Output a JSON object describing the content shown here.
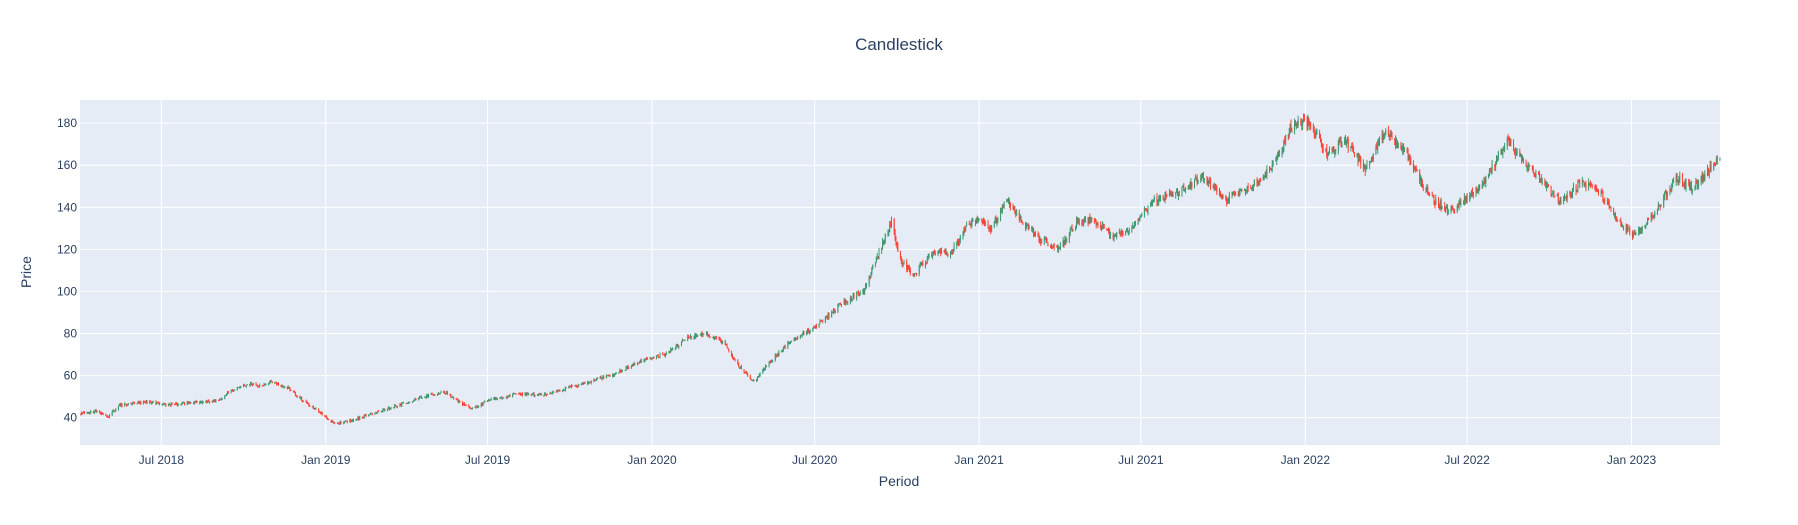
{
  "chart_data": {
    "type": "candlestick",
    "title": "Candlestick",
    "xlabel": "Period",
    "ylabel": "Price",
    "xlim": [
      "2018-04-01",
      "2023-04-10"
    ],
    "ylim": [
      27,
      191
    ],
    "y_ticks": [
      40,
      60,
      80,
      100,
      120,
      140,
      160,
      180
    ],
    "x_ticks": [
      {
        "date": "2018-07-01",
        "label": "Jul 2018"
      },
      {
        "date": "2019-01-01",
        "label": "Jan 2019"
      },
      {
        "date": "2019-07-01",
        "label": "Jul 2019"
      },
      {
        "date": "2020-01-01",
        "label": "Jan 2020"
      },
      {
        "date": "2020-07-01",
        "label": "Jul 2020"
      },
      {
        "date": "2021-01-01",
        "label": "Jan 2021"
      },
      {
        "date": "2021-07-01",
        "label": "Jul 2021"
      },
      {
        "date": "2022-01-01",
        "label": "Jan 2022"
      },
      {
        "date": "2022-07-01",
        "label": "Jul 2022"
      },
      {
        "date": "2023-01-01",
        "label": "Jan 2023"
      }
    ],
    "grid": true,
    "increasing_color": "#3d9970",
    "decreasing_color": "#ff4136",
    "close_trend": [
      [
        "2018-04-01",
        42
      ],
      [
        "2018-04-20",
        43
      ],
      [
        "2018-05-03",
        40.5
      ],
      [
        "2018-05-15",
        46
      ],
      [
        "2018-06-15",
        47.5
      ],
      [
        "2018-07-10",
        46
      ],
      [
        "2018-08-01",
        47
      ],
      [
        "2018-09-01",
        48
      ],
      [
        "2018-09-15",
        52
      ],
      [
        "2018-10-05",
        56
      ],
      [
        "2018-10-20",
        55
      ],
      [
        "2018-11-01",
        57
      ],
      [
        "2018-11-20",
        54
      ],
      [
        "2018-12-10",
        47
      ],
      [
        "2018-12-31",
        41
      ],
      [
        "2019-01-10",
        37
      ],
      [
        "2019-02-01",
        39
      ],
      [
        "2019-03-01",
        43
      ],
      [
        "2019-04-01",
        47
      ],
      [
        "2019-04-20",
        50
      ],
      [
        "2019-05-15",
        52
      ],
      [
        "2019-06-01",
        47
      ],
      [
        "2019-06-15",
        44
      ],
      [
        "2019-07-01",
        48
      ],
      [
        "2019-08-01",
        51
      ],
      [
        "2019-09-01",
        51
      ],
      [
        "2019-10-15",
        56
      ],
      [
        "2019-11-15",
        60
      ],
      [
        "2019-12-15",
        66
      ],
      [
        "2020-01-15",
        70
      ],
      [
        "2020-02-10",
        78
      ],
      [
        "2020-03-01",
        80
      ],
      [
        "2020-03-20",
        76
      ],
      [
        "2020-04-10",
        63
      ],
      [
        "2020-04-25",
        57
      ],
      [
        "2020-05-10",
        66
      ],
      [
        "2020-06-01",
        75
      ],
      [
        "2020-07-01",
        83
      ],
      [
        "2020-07-31",
        94
      ],
      [
        "2020-08-15",
        98
      ],
      [
        "2020-08-25",
        100
      ],
      [
        "2020-09-10",
        118
      ],
      [
        "2020-09-25",
        133
      ],
      [
        "2020-10-05",
        115
      ],
      [
        "2020-10-20",
        108
      ],
      [
        "2020-11-10",
        118
      ],
      [
        "2020-12-01",
        118
      ],
      [
        "2020-12-20",
        132
      ],
      [
        "2021-01-01",
        135
      ],
      [
        "2021-01-15",
        130
      ],
      [
        "2021-01-31",
        143
      ],
      [
        "2021-02-20",
        133
      ],
      [
        "2021-03-10",
        125
      ],
      [
        "2021-04-01",
        120
      ],
      [
        "2021-04-20",
        133
      ],
      [
        "2021-05-10",
        134
      ],
      [
        "2021-05-31",
        126
      ],
      [
        "2021-06-20",
        129
      ],
      [
        "2021-07-15",
        143
      ],
      [
        "2021-08-10",
        147
      ],
      [
        "2021-09-10",
        155
      ],
      [
        "2021-10-01",
        143
      ],
      [
        "2021-10-31",
        149
      ],
      [
        "2021-11-30",
        162
      ],
      [
        "2021-12-15",
        178
      ],
      [
        "2022-01-05",
        181
      ],
      [
        "2022-01-25",
        165
      ],
      [
        "2022-02-15",
        172
      ],
      [
        "2022-03-10",
        158
      ],
      [
        "2022-04-01",
        176
      ],
      [
        "2022-04-25",
        165
      ],
      [
        "2022-05-20",
        145
      ],
      [
        "2022-06-10",
        138
      ],
      [
        "2022-06-25",
        142
      ],
      [
        "2022-07-20",
        152
      ],
      [
        "2022-08-15",
        172
      ],
      [
        "2022-09-01",
        162
      ],
      [
        "2022-09-25",
        152
      ],
      [
        "2022-10-15",
        142
      ],
      [
        "2022-11-05",
        152
      ],
      [
        "2022-11-25",
        148
      ],
      [
        "2022-12-20",
        132
      ],
      [
        "2023-01-05",
        126
      ],
      [
        "2023-01-31",
        140
      ],
      [
        "2023-02-20",
        154
      ],
      [
        "2023-03-10",
        149
      ],
      [
        "2023-04-10",
        163
      ]
    ],
    "note": "Daily OHLC candles; close path follows close_trend (approximate values read from the chart). Candle bodies are colored green when close > open and red otherwise."
  }
}
